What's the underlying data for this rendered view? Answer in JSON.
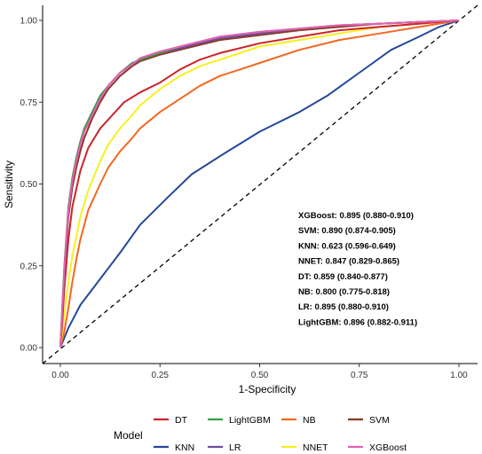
{
  "chart_data": {
    "type": "line",
    "xlabel": "1-Specificity",
    "ylabel": "Sensitivity",
    "xlim": [
      0,
      1
    ],
    "ylim": [
      0,
      1
    ],
    "x_ticks": [
      "0.00",
      "0.25",
      "0.50",
      "0.75",
      "1.00"
    ],
    "y_ticks": [
      "0.00",
      "0.25",
      "0.50",
      "0.75",
      "1.00"
    ],
    "grid": false,
    "reference_line": {
      "style": "dashed",
      "from": [
        0,
        0
      ],
      "to": [
        1,
        1
      ],
      "color": "#000000"
    },
    "legend": {
      "title": "Model",
      "position": "bottom"
    },
    "annotations": [
      "XGBoost: 0.895 (0.880-0.910)",
      "SVM: 0.890 (0.874-0.905)",
      "KNN: 0.623 (0.596-0.649)",
      "NNET: 0.847 (0.829-0.865)",
      "DT: 0.859 (0.840-0.877)",
      "NB: 0.800 (0.775-0.818)",
      "LR: 0.895 (0.880-0.910)",
      "LightGBM: 0.896 (0.882-0.911)"
    ],
    "series": [
      {
        "name": "DT",
        "color": "#cc2229",
        "x": [
          0,
          0.005,
          0.01,
          0.02,
          0.03,
          0.05,
          0.07,
          0.1,
          0.13,
          0.16,
          0.2,
          0.25,
          0.3,
          0.35,
          0.4,
          0.5,
          0.6,
          0.7,
          0.8,
          0.9,
          1.0
        ],
        "y": [
          0,
          0.08,
          0.18,
          0.33,
          0.43,
          0.54,
          0.61,
          0.67,
          0.71,
          0.75,
          0.78,
          0.81,
          0.85,
          0.88,
          0.9,
          0.93,
          0.95,
          0.97,
          0.98,
          0.99,
          1.0
        ]
      },
      {
        "name": "KNN",
        "color": "#26489a",
        "x": [
          0,
          0.02,
          0.05,
          0.1,
          0.15,
          0.2,
          0.27,
          0.33,
          0.42,
          0.5,
          0.6,
          0.67,
          0.75,
          0.83,
          0.9,
          0.95,
          1.0
        ],
        "y": [
          0,
          0.06,
          0.13,
          0.21,
          0.29,
          0.375,
          0.46,
          0.53,
          0.6,
          0.66,
          0.72,
          0.77,
          0.84,
          0.91,
          0.95,
          0.98,
          1.0
        ]
      },
      {
        "name": "LightGBM",
        "color": "#3a9a47",
        "x": [
          0,
          0.005,
          0.01,
          0.02,
          0.03,
          0.04,
          0.05,
          0.06,
          0.08,
          0.1,
          0.12,
          0.15,
          0.18,
          0.2,
          0.25,
          0.3,
          0.35,
          0.4,
          0.5,
          0.6,
          0.7,
          0.8,
          0.9,
          1.0
        ],
        "y": [
          0,
          0.13,
          0.25,
          0.43,
          0.52,
          0.58,
          0.63,
          0.67,
          0.72,
          0.77,
          0.8,
          0.84,
          0.87,
          0.88,
          0.9,
          0.92,
          0.935,
          0.95,
          0.965,
          0.975,
          0.985,
          0.99,
          0.995,
          1.0
        ]
      },
      {
        "name": "LR",
        "color": "#6e4d9d",
        "x": [
          0,
          0.005,
          0.01,
          0.02,
          0.03,
          0.04,
          0.05,
          0.06,
          0.08,
          0.1,
          0.12,
          0.15,
          0.18,
          0.2,
          0.25,
          0.3,
          0.35,
          0.4,
          0.5,
          0.6,
          0.7,
          0.8,
          0.9,
          1.0
        ],
        "y": [
          0,
          0.12,
          0.24,
          0.42,
          0.51,
          0.57,
          0.62,
          0.66,
          0.71,
          0.76,
          0.8,
          0.84,
          0.865,
          0.88,
          0.9,
          0.915,
          0.93,
          0.945,
          0.96,
          0.975,
          0.985,
          0.99,
          0.995,
          1.0
        ]
      },
      {
        "name": "NB",
        "color": "#f26722",
        "x": [
          0,
          0.01,
          0.02,
          0.03,
          0.04,
          0.05,
          0.07,
          0.1,
          0.12,
          0.15,
          0.18,
          0.2,
          0.23,
          0.25,
          0.3,
          0.35,
          0.4,
          0.45,
          0.5,
          0.6,
          0.7,
          0.8,
          0.9,
          1.0
        ],
        "y": [
          0,
          0.05,
          0.12,
          0.2,
          0.27,
          0.33,
          0.42,
          0.5,
          0.55,
          0.6,
          0.64,
          0.67,
          0.7,
          0.72,
          0.76,
          0.8,
          0.83,
          0.85,
          0.87,
          0.91,
          0.94,
          0.96,
          0.98,
          1.0
        ]
      },
      {
        "name": "NNET",
        "color": "#f7f01e",
        "x": [
          0,
          0.01,
          0.02,
          0.03,
          0.05,
          0.07,
          0.1,
          0.12,
          0.15,
          0.18,
          0.2,
          0.25,
          0.3,
          0.35,
          0.4,
          0.5,
          0.6,
          0.7,
          0.8,
          0.9,
          1.0
        ],
        "y": [
          0,
          0.1,
          0.2,
          0.28,
          0.4,
          0.48,
          0.57,
          0.62,
          0.67,
          0.71,
          0.74,
          0.79,
          0.83,
          0.86,
          0.88,
          0.92,
          0.94,
          0.96,
          0.98,
          0.99,
          1.0
        ]
      },
      {
        "name": "SVM",
        "color": "#8a3a26",
        "x": [
          0,
          0.005,
          0.01,
          0.02,
          0.03,
          0.04,
          0.05,
          0.06,
          0.08,
          0.1,
          0.12,
          0.15,
          0.18,
          0.2,
          0.25,
          0.3,
          0.35,
          0.4,
          0.5,
          0.6,
          0.7,
          0.8,
          0.9,
          1.0
        ],
        "y": [
          0,
          0.11,
          0.22,
          0.4,
          0.49,
          0.55,
          0.6,
          0.64,
          0.7,
          0.75,
          0.79,
          0.83,
          0.86,
          0.875,
          0.895,
          0.91,
          0.925,
          0.94,
          0.955,
          0.97,
          0.98,
          0.99,
          0.995,
          1.0
        ]
      },
      {
        "name": "XGBoost",
        "color": "#e75fb5",
        "x": [
          0,
          0.005,
          0.01,
          0.02,
          0.03,
          0.04,
          0.05,
          0.06,
          0.08,
          0.1,
          0.12,
          0.15,
          0.18,
          0.2,
          0.25,
          0.3,
          0.35,
          0.4,
          0.5,
          0.6,
          0.7,
          0.8,
          0.9,
          1.0
        ],
        "y": [
          0,
          0.12,
          0.24,
          0.42,
          0.51,
          0.57,
          0.62,
          0.66,
          0.71,
          0.76,
          0.8,
          0.84,
          0.865,
          0.885,
          0.905,
          0.92,
          0.935,
          0.95,
          0.965,
          0.975,
          0.985,
          0.99,
          0.995,
          1.0
        ]
      }
    ]
  }
}
